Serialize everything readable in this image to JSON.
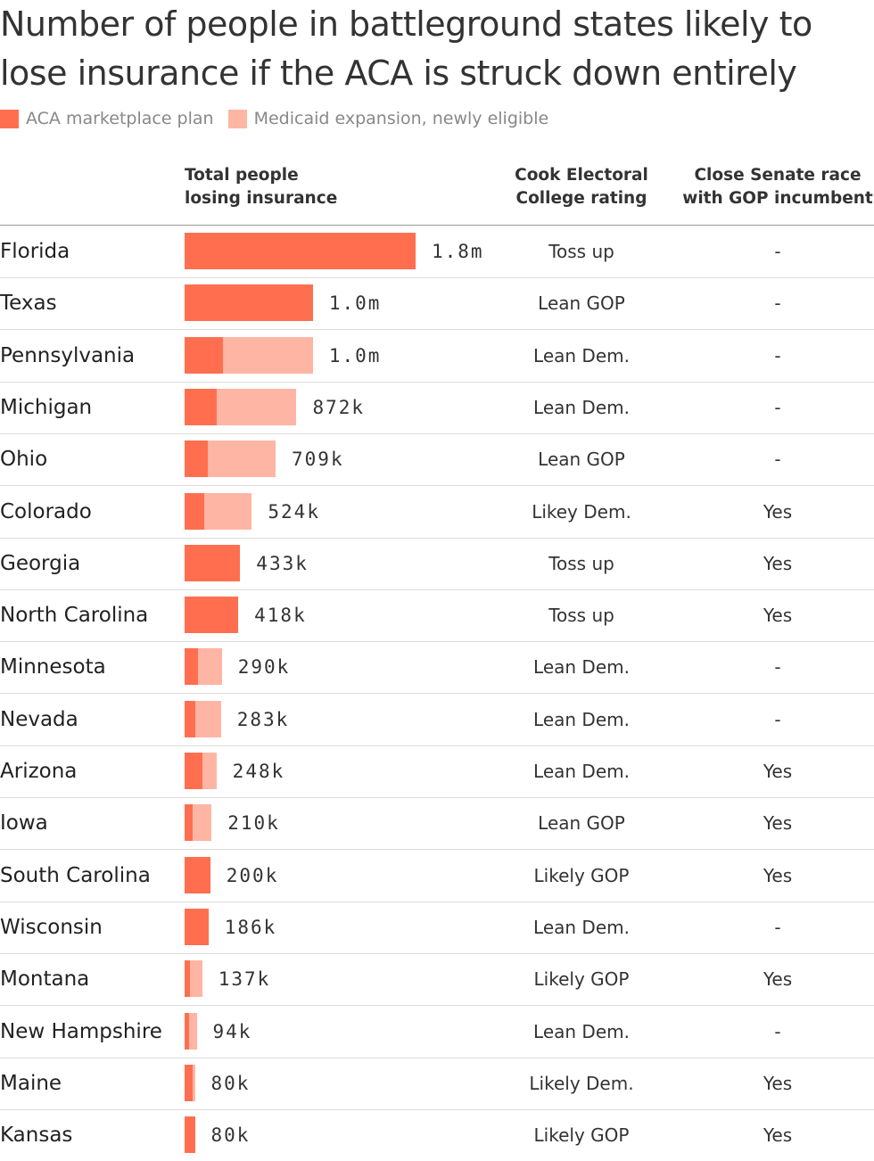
{
  "title": "Number of people in battleground states likely to lose insurance if the ACA is struck down entirely",
  "legend": [
    {
      "label": "ACA marketplace plan",
      "color": "#ff6f4f"
    },
    {
      "label": "Medicaid expansion, newly eligible",
      "color": "#ffb5a4"
    }
  ],
  "columns": {
    "total_line1": "Total people",
    "total_line2": "losing insurance",
    "cook_line1": "Cook Electoral",
    "cook_line2": "College rating",
    "senate_line1": "Close Senate race",
    "senate_line2": "with GOP incumbent"
  },
  "chart_data": {
    "type": "bar",
    "orientation": "horizontal",
    "stacked": true,
    "categories": [
      "Florida",
      "Texas",
      "Pennsylvania",
      "Michigan",
      "Ohio",
      "Colorado",
      "Georgia",
      "North Carolina",
      "Minnesota",
      "Nevada",
      "Arizona",
      "Iowa",
      "South Carolina",
      "Wisconsin",
      "Montana",
      "New Hampshire",
      "Maine",
      "Kansas"
    ],
    "series": [
      {
        "name": "ACA marketplace plan",
        "color": "#ff6f4f",
        "values": [
          1800000,
          1000000,
          300000,
          250000,
          180000,
          150000,
          433000,
          418000,
          105000,
          80000,
          140000,
          60000,
          200000,
          186000,
          45000,
          35000,
          65000,
          80000
        ]
      },
      {
        "name": "Medicaid expansion, newly eligible",
        "color": "#ffb5a4",
        "values": [
          0,
          0,
          700000,
          622000,
          529000,
          374000,
          0,
          0,
          185000,
          203000,
          108000,
          150000,
          0,
          0,
          92000,
          59000,
          15000,
          0
        ]
      }
    ],
    "totals": [
      1800000,
      1000000,
      1000000,
      872000,
      709000,
      524000,
      433000,
      418000,
      290000,
      283000,
      248000,
      210000,
      200000,
      186000,
      137000,
      94000,
      80000,
      80000
    ],
    "total_labels": [
      "1.8m",
      "1.0m",
      "1.0m",
      "872k",
      "709k",
      "524k",
      "433k",
      "418k",
      "290k",
      "283k",
      "248k",
      "210k",
      "200k",
      "186k",
      "137k",
      "94k",
      "80k",
      "80k"
    ],
    "cook_rating": [
      "Toss up",
      "Lean GOP",
      "Lean Dem.",
      "Lean Dem.",
      "Lean GOP",
      "Likey Dem.",
      "Toss up",
      "Toss up",
      "Lean Dem.",
      "Lean Dem.",
      "Lean Dem.",
      "Lean GOP",
      "Likely GOP",
      "Lean Dem.",
      "Likely GOP",
      "Lean Dem.",
      "Likely Dem.",
      "Likely GOP"
    ],
    "close_senate_race": [
      "-",
      "-",
      "-",
      "-",
      "-",
      "Yes",
      "Yes",
      "Yes",
      "-",
      "-",
      "Yes",
      "Yes",
      "Yes",
      "-",
      "Yes",
      "-",
      "Yes",
      "Yes"
    ],
    "xlim": [
      0,
      1800000
    ]
  }
}
